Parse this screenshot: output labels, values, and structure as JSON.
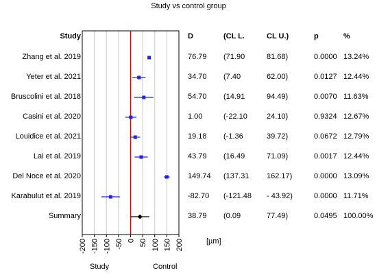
{
  "title": "Study vs control group",
  "headers": {
    "study": "Study",
    "d": "D",
    "cl_lower": "(CL L.",
    "cl_upper": "CL U.)",
    "p": "p",
    "pct": "%"
  },
  "rows": [
    {
      "label": "Zhang et al. 2019",
      "d": "76.79",
      "cl_lower": "(71.90",
      "cl_upper": "81.68)",
      "p": "0.0000",
      "pct": "13.24%"
    },
    {
      "label": "Yeter et al. 2021",
      "d": "34.70",
      "cl_lower": "(7.40",
      "cl_upper": "62.00)",
      "p": "0.0127",
      "pct": "12.44%"
    },
    {
      "label": "Bruscolini et al. 2018",
      "d": "54.70",
      "cl_lower": "(14.91",
      "cl_upper": "94.49)",
      "p": "0.0070",
      "pct": "11.63%"
    },
    {
      "label": "Casini et al. 2020",
      "d": "1.00",
      "cl_lower": "(-22.10",
      "cl_upper": "24.10)",
      "p": "0.9324",
      "pct": "12.67%"
    },
    {
      "label": "Louidice et al. 2021",
      "d": "19.18",
      "cl_lower": "(-1.36",
      "cl_upper": "39.72)",
      "p": "0.0672",
      "pct": "12.79%"
    },
    {
      "label": "Lai et al. 2019",
      "d": "43.79",
      "cl_lower": "(16.49",
      "cl_upper": "71.09)",
      "p": "0.0017",
      "pct": "12.44%"
    },
    {
      "label": "Del Noce et al. 2020",
      "d": "149.74",
      "cl_lower": "(137.31",
      "cl_upper": "162.17)",
      "p": "0.0000",
      "pct": "13.09%"
    },
    {
      "label": "Karabulut et al. 2019",
      "d": "-82.70",
      "cl_lower": "(-121.48",
      "cl_upper": "- 43.92)",
      "p": "0.0000",
      "pct": "11.71%"
    },
    {
      "label": "Summary",
      "d": "38.79",
      "cl_lower": "(0.09",
      "cl_upper": "77.49)",
      "p": "0.0495",
      "pct": "100.00%"
    }
  ],
  "x_axis": {
    "unit_label": "[µm]",
    "left_label": "Study",
    "right_label": "Control"
  },
  "colors": {
    "study_marker": "#1f1fff",
    "summary_marker": "#000000",
    "zero_line": "#e00000",
    "grid": "#c8c8c8"
  },
  "chart_data": {
    "type": "forest",
    "title": "Study vs control group",
    "xlabel": "[µm]",
    "xlim": [
      -200,
      200
    ],
    "xticks": [
      -200,
      -150,
      -100,
      -50,
      0,
      50,
      100,
      150,
      200
    ],
    "grid": true,
    "reference_line": 0,
    "studies": [
      {
        "name": "Zhang et al. 2019",
        "d": 76.79,
        "lower": 71.9,
        "upper": 81.68
      },
      {
        "name": "Yeter et al. 2021",
        "d": 34.7,
        "lower": 7.4,
        "upper": 62.0
      },
      {
        "name": "Bruscolini et al. 2018",
        "d": 54.7,
        "lower": 14.91,
        "upper": 94.49
      },
      {
        "name": "Casini et al. 2020",
        "d": 1.0,
        "lower": -22.1,
        "upper": 24.1
      },
      {
        "name": "Louidice et al. 2021",
        "d": 19.18,
        "lower": -1.36,
        "upper": 39.72
      },
      {
        "name": "Lai et al. 2019",
        "d": 43.79,
        "lower": 16.49,
        "upper": 71.09
      },
      {
        "name": "Del Noce et al. 2020",
        "d": 149.74,
        "lower": 137.31,
        "upper": 162.17
      },
      {
        "name": "Karabulut et al. 2019",
        "d": -82.7,
        "lower": -121.48,
        "upper": -43.92
      }
    ],
    "summary": {
      "name": "Summary",
      "d": 38.79,
      "lower": 0.09,
      "upper": 77.49
    }
  }
}
